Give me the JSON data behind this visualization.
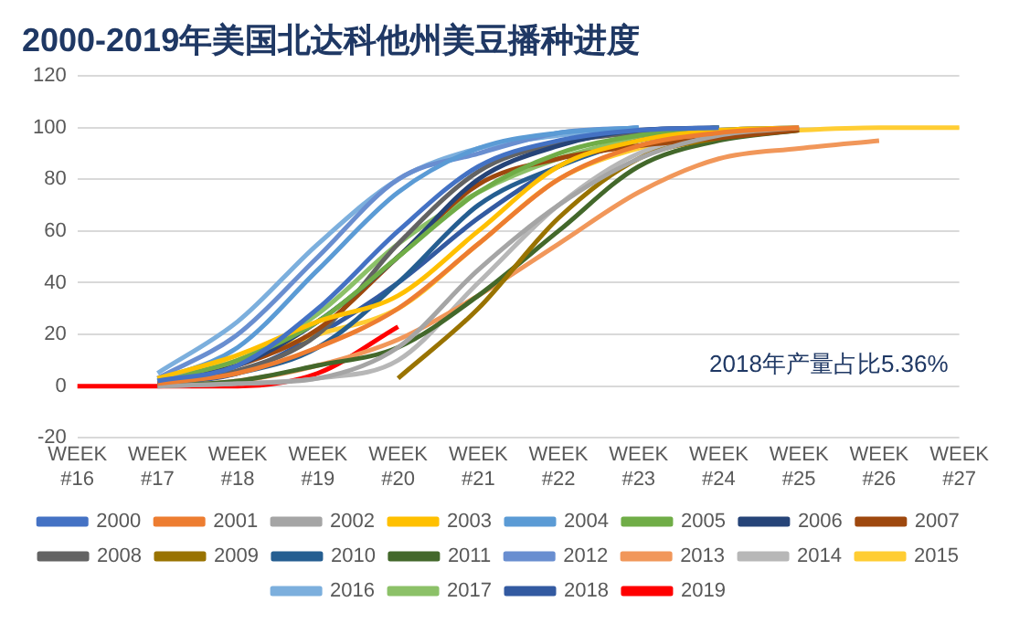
{
  "chart_data": {
    "type": "line",
    "title": "2000-2019年美国北达科他州美豆播种进度",
    "categories": [
      "WEEK #16",
      "WEEK #17",
      "WEEK #18",
      "WEEK #19",
      "WEEK #20",
      "WEEK #21",
      "WEEK #22",
      "WEEK #23",
      "WEEK #24",
      "WEEK #25",
      "WEEK #26",
      "WEEK #27"
    ],
    "ylim": [
      -20,
      120
    ],
    "yticks": [
      -20,
      0,
      20,
      40,
      60,
      80,
      100,
      120
    ],
    "grid": "y",
    "legend": "bottom",
    "marker": "none",
    "annotations": [
      "2018年产量占比5.36%"
    ],
    "series": [
      {
        "name": "2000",
        "color": "#4472c4",
        "values": [
          null,
          2,
          8,
          30,
          60,
          85,
          95,
          99,
          100,
          null,
          null,
          null
        ]
      },
      {
        "name": "2001",
        "color": "#ed7d31",
        "values": [
          null,
          1,
          5,
          15,
          30,
          55,
          80,
          93,
          98,
          100,
          null,
          null
        ]
      },
      {
        "name": "2002",
        "color": "#a5a5a5",
        "values": [
          null,
          0,
          1,
          3,
          15,
          45,
          70,
          88,
          97,
          100,
          null,
          null
        ]
      },
      {
        "name": "2003",
        "color": "#ffc000",
        "values": [
          null,
          3,
          12,
          25,
          35,
          60,
          85,
          95,
          99,
          100,
          null,
          null
        ]
      },
      {
        "name": "2004",
        "color": "#5b9bd5",
        "values": [
          null,
          2,
          15,
          45,
          75,
          92,
          98,
          100,
          null,
          null,
          null,
          null
        ]
      },
      {
        "name": "2005",
        "color": "#70ad47",
        "values": [
          null,
          2,
          10,
          25,
          50,
          75,
          90,
          97,
          100,
          null,
          null,
          null
        ]
      },
      {
        "name": "2006",
        "color": "#264478",
        "values": [
          null,
          1,
          8,
          25,
          50,
          80,
          93,
          99,
          100,
          null,
          null,
          null
        ]
      },
      {
        "name": "2007",
        "color": "#9e480e",
        "values": [
          null,
          1,
          8,
          22,
          50,
          78,
          88,
          93,
          96,
          99,
          null,
          null
        ]
      },
      {
        "name": "2008",
        "color": "#636363",
        "values": [
          null,
          1,
          6,
          20,
          55,
          83,
          94,
          98,
          100,
          null,
          null,
          null
        ]
      },
      {
        "name": "2009",
        "color": "#997300",
        "values": [
          null,
          null,
          null,
          null,
          3,
          30,
          65,
          88,
          96,
          100,
          null,
          null
        ]
      },
      {
        "name": "2010",
        "color": "#255e91",
        "values": [
          null,
          1,
          5,
          15,
          40,
          70,
          85,
          95,
          99,
          100,
          null,
          null
        ]
      },
      {
        "name": "2011",
        "color": "#43682b",
        "values": [
          null,
          0,
          2,
          8,
          15,
          35,
          60,
          85,
          95,
          99,
          null,
          null
        ]
      },
      {
        "name": "2012",
        "color": "#698ed0",
        "values": [
          null,
          3,
          20,
          50,
          80,
          90,
          98,
          100,
          null,
          null,
          null,
          null
        ]
      },
      {
        "name": "2013",
        "color": "#f1975a",
        "values": [
          null,
          0,
          2,
          8,
          18,
          35,
          55,
          75,
          88,
          92,
          95,
          null
        ]
      },
      {
        "name": "2014",
        "color": "#b7b7b7",
        "values": [
          null,
          0,
          1,
          3,
          10,
          40,
          70,
          90,
          97,
          100,
          null,
          null
        ]
      },
      {
        "name": "2015",
        "color": "#ffcd33",
        "values": [
          null,
          2,
          10,
          20,
          30,
          55,
          80,
          92,
          97,
          99,
          100,
          100
        ]
      },
      {
        "name": "2016",
        "color": "#7cafdd",
        "values": [
          null,
          5,
          25,
          55,
          80,
          92,
          97,
          100,
          null,
          null,
          null,
          null
        ]
      },
      {
        "name": "2017",
        "color": "#8cc168",
        "values": [
          null,
          2,
          10,
          28,
          55,
          75,
          88,
          96,
          100,
          null,
          null,
          null
        ]
      },
      {
        "name": "2018",
        "color": "#335aa1",
        "values": [
          null,
          1,
          5,
          20,
          40,
          65,
          85,
          97,
          100,
          null,
          null,
          null
        ]
      },
      {
        "name": "2019",
        "color": "#ff0000",
        "values": [
          0,
          0,
          0,
          5,
          23,
          null,
          null,
          null,
          null,
          null,
          null,
          null
        ]
      }
    ]
  }
}
